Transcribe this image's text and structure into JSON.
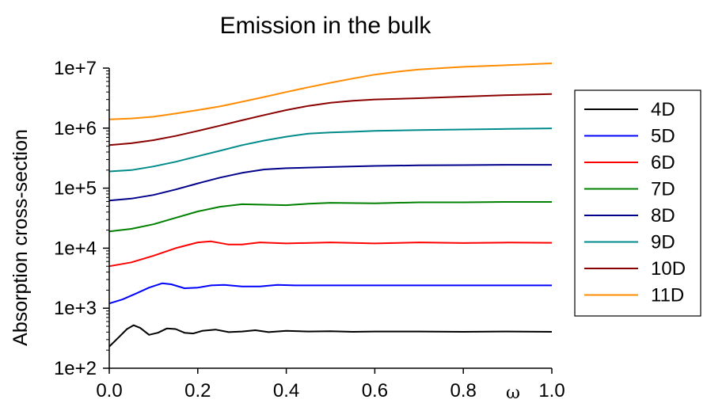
{
  "chart_data": {
    "type": "line",
    "title": "Emission in the bulk",
    "xlabel": "ω",
    "ylabel": "Absorption cross-section",
    "yscale": "log",
    "xlim": [
      0.0,
      1.0
    ],
    "ylim": [
      100,
      10000000
    ],
    "x_ticks": [
      "0.0",
      "0.2",
      "0.4",
      "0.6",
      "0.8",
      "1.0"
    ],
    "y_ticks": [
      "1e+2",
      "1e+3",
      "1e+4",
      "1e+5",
      "1e+6",
      "1e+7"
    ],
    "grid": false,
    "legend_position": "right",
    "series": [
      {
        "name": "4D",
        "color": "#000000",
        "x": [
          0.0,
          0.02,
          0.04,
          0.055,
          0.07,
          0.09,
          0.11,
          0.13,
          0.15,
          0.17,
          0.19,
          0.21,
          0.24,
          0.27,
          0.3,
          0.33,
          0.36,
          0.4,
          0.45,
          0.5,
          0.55,
          0.6,
          0.7,
          0.8,
          0.9,
          1.0
        ],
        "y": [
          230,
          320,
          450,
          520,
          470,
          360,
          390,
          460,
          450,
          390,
          380,
          420,
          440,
          400,
          410,
          430,
          400,
          420,
          410,
          415,
          405,
          410,
          410,
          405,
          410,
          405
        ]
      },
      {
        "name": "5D",
        "color": "#0000ff",
        "x": [
          0.0,
          0.03,
          0.06,
          0.09,
          0.12,
          0.14,
          0.17,
          0.2,
          0.23,
          0.26,
          0.3,
          0.34,
          0.38,
          0.42,
          0.5,
          0.6,
          0.7,
          0.8,
          0.9,
          1.0
        ],
        "y": [
          1200,
          1400,
          1750,
          2200,
          2600,
          2500,
          2150,
          2200,
          2400,
          2450,
          2300,
          2300,
          2450,
          2400,
          2400,
          2400,
          2400,
          2400,
          2400,
          2400
        ]
      },
      {
        "name": "6D",
        "color": "#ff0000",
        "x": [
          0.0,
          0.05,
          0.1,
          0.15,
          0.2,
          0.23,
          0.27,
          0.3,
          0.34,
          0.4,
          0.5,
          0.6,
          0.7,
          0.8,
          0.9,
          1.0
        ],
        "y": [
          5000,
          5800,
          7500,
          10000,
          12500,
          13000,
          11500,
          11500,
          12500,
          12000,
          12500,
          12000,
          12500,
          12200,
          12400,
          12300
        ]
      },
      {
        "name": "7D",
        "color": "#008000",
        "x": [
          0.0,
          0.05,
          0.1,
          0.15,
          0.2,
          0.25,
          0.3,
          0.35,
          0.4,
          0.45,
          0.5,
          0.6,
          0.7,
          0.8,
          0.9,
          1.0
        ],
        "y": [
          19000,
          21000,
          25000,
          32000,
          41000,
          49000,
          54000,
          53000,
          52000,
          55000,
          57000,
          56000,
          58000,
          58000,
          59000,
          59000
        ]
      },
      {
        "name": "8D",
        "color": "#00008b",
        "x": [
          0.0,
          0.05,
          0.1,
          0.15,
          0.2,
          0.25,
          0.3,
          0.35,
          0.4,
          0.45,
          0.5,
          0.6,
          0.7,
          0.8,
          0.9,
          1.0
        ],
        "y": [
          62000,
          67000,
          77000,
          95000,
          120000,
          150000,
          180000,
          205000,
          215000,
          220000,
          225000,
          235000,
          240000,
          242000,
          245000,
          245000
        ]
      },
      {
        "name": "9D",
        "color": "#008b8b",
        "x": [
          0.0,
          0.05,
          0.1,
          0.15,
          0.2,
          0.25,
          0.3,
          0.35,
          0.4,
          0.45,
          0.5,
          0.55,
          0.6,
          0.7,
          0.8,
          0.9,
          1.0
        ],
        "y": [
          190000,
          200000,
          230000,
          275000,
          340000,
          420000,
          520000,
          620000,
          720000,
          810000,
          850000,
          870000,
          900000,
          930000,
          950000,
          970000,
          990000
        ]
      },
      {
        "name": "10D",
        "color": "#8b0000",
        "x": [
          0.0,
          0.05,
          0.1,
          0.15,
          0.2,
          0.25,
          0.3,
          0.35,
          0.4,
          0.45,
          0.5,
          0.55,
          0.6,
          0.7,
          0.8,
          0.9,
          1.0
        ],
        "y": [
          520000,
          560000,
          630000,
          740000,
          900000,
          1100000,
          1350000,
          1650000,
          2000000,
          2350000,
          2650000,
          2850000,
          3000000,
          3150000,
          3350000,
          3550000,
          3700000
        ]
      },
      {
        "name": "11D",
        "color": "#ff8c00",
        "x": [
          0.0,
          0.05,
          0.1,
          0.15,
          0.2,
          0.25,
          0.3,
          0.35,
          0.4,
          0.45,
          0.5,
          0.55,
          0.6,
          0.65,
          0.7,
          0.8,
          0.9,
          1.0
        ],
        "y": [
          1400000,
          1450000,
          1550000,
          1750000,
          2000000,
          2300000,
          2750000,
          3300000,
          4000000,
          4800000,
          5700000,
          6700000,
          7800000,
          8700000,
          9500000,
          10500000,
          11200000,
          12000000
        ]
      }
    ]
  }
}
